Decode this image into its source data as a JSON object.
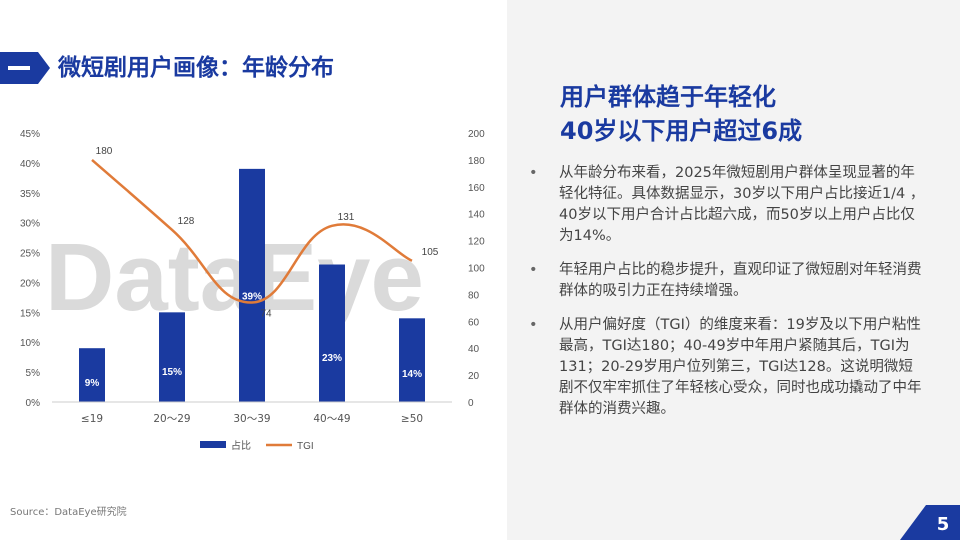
{
  "header": {
    "title": "微短剧用户画像：年龄分布"
  },
  "chart_data": {
    "type": "bar",
    "categories": [
      "≤19",
      "20～29",
      "30～39",
      "40～49",
      "≥50"
    ],
    "series": [
      {
        "name": "占比",
        "type": "bar",
        "axis": "left",
        "values": [
          9,
          15,
          39,
          23,
          14
        ],
        "labels": [
          "9%",
          "15%",
          "39%",
          "23%",
          "14%"
        ],
        "color": "#1a3aa0"
      },
      {
        "name": "TGI",
        "type": "line",
        "axis": "right",
        "values": [
          180,
          128,
          74,
          131,
          105
        ],
        "labels": [
          "180",
          "128",
          "74",
          "131",
          "105"
        ],
        "color": "#e07b39"
      }
    ],
    "y_left": {
      "ticks": [
        "0%",
        "5%",
        "10%",
        "15%",
        "20%",
        "25%",
        "30%",
        "35%",
        "40%",
        "45%"
      ],
      "ylim": [
        0,
        45
      ]
    },
    "y_right": {
      "ticks": [
        "0",
        "20",
        "40",
        "60",
        "80",
        "100",
        "120",
        "140",
        "160",
        "180",
        "200"
      ],
      "ylim": [
        0,
        200
      ]
    },
    "grid": false,
    "legend_position": "bottom"
  },
  "watermark": {
    "text": "DataEye"
  },
  "source": "Source：DataEye研究院",
  "headline": {
    "line1": "用户群体趋于年轻化",
    "line2": "40岁以下用户超过6成"
  },
  "bullets": [
    {
      "marker": "•",
      "text": "从年龄分布来看，2025年微短剧用户群体呈现显著的年轻化特征。具体数据显示，30岁以下用户占比接近1/4 ，40岁以下用户合计占比超六成，而50岁以上用户占比仅为14%。"
    },
    {
      "marker": "•",
      "text": "年轻用户占比的稳步提升，直观印证了微短剧对年轻消费群体的吸引力正在持续增强。"
    },
    {
      "marker": "•",
      "text": "从用户偏好度（TGI）的维度来看：19岁及以下用户粘性最高，TGI达180；40-49岁中年用户紧随其后，TGI为131；20-29岁用户位列第三，TGI达128。这说明微短剧不仅牢牢抓住了年轻核心受众，同时也成功撬动了中年群体的消费兴趣。"
    }
  ],
  "page_number": "5"
}
